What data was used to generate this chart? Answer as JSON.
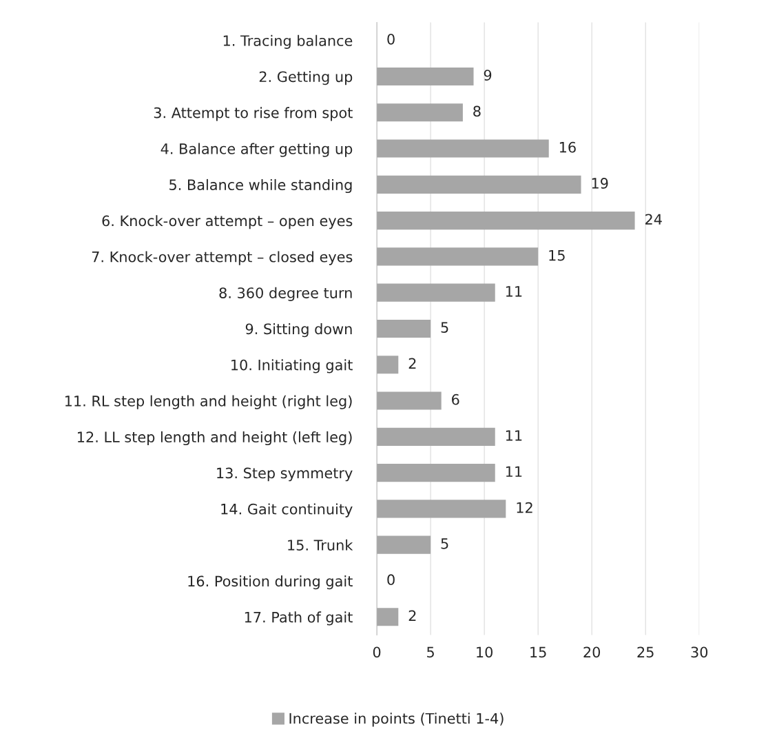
{
  "chart_data": {
    "type": "bar",
    "orientation": "horizontal",
    "categories": [
      "1. Tracing balance",
      "2. Getting up",
      "3. Attempt to rise from spot",
      "4. Balance after getting up",
      "5. Balance while standing",
      "6. Knock-over attempt – open eyes",
      "7. Knock-over attempt – closed eyes",
      "8. 360 degree turn",
      "9. Sitting down",
      "10. Initiating gait",
      "11. RL step length and height (right leg)",
      "12. LL step length and height (left leg)",
      "13. Step symmetry",
      "14. Gait continuity",
      "15. Trunk",
      "16. Position during gait",
      "17. Path of gait"
    ],
    "series": [
      {
        "name": "Increase in points (Tinetti 1-4)",
        "color": "#a6a6a6",
        "values": [
          0,
          9,
          8,
          16,
          19,
          24,
          15,
          11,
          5,
          2,
          6,
          11,
          11,
          12,
          5,
          0,
          2
        ]
      }
    ],
    "xlim": [
      0,
      30
    ],
    "xticks": [
      0,
      5,
      10,
      15,
      20,
      25,
      30
    ],
    "grid": "x",
    "legend": "bottom",
    "data_labels": true
  }
}
